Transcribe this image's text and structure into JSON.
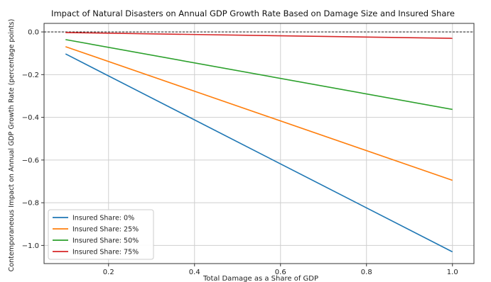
{
  "chart_data": {
    "type": "line",
    "title": "Impact of Natural Disasters on Annual GDP Growth Rate Based on Damage Size and Insured Share",
    "xlabel": "Total Damage as a Share of GDP",
    "ylabel": "Contemporaneous Impact on Annual GDP Growth Rate (percentage points)",
    "xlim": [
      0.05,
      1.05
    ],
    "ylim": [
      -1.085,
      0.04
    ],
    "x_ticks": [
      0.2,
      0.4,
      0.6,
      0.8,
      1.0
    ],
    "x_tick_labels": [
      "0.2",
      "0.4",
      "0.6",
      "0.8",
      "1.0"
    ],
    "y_ticks": [
      0.0,
      -0.2,
      -0.4,
      -0.6,
      -0.8,
      -1.0
    ],
    "y_tick_labels": [
      "0.0",
      "−0.2",
      "−0.4",
      "−0.6",
      "−0.8",
      "−1.0"
    ],
    "grid": true,
    "legend_position": "lower-left",
    "reference_line": {
      "y": 0,
      "style": "dashed",
      "color": "#000000"
    },
    "x": [
      0.1,
      1.0
    ],
    "series": [
      {
        "name": "Insured Share: 0%",
        "color": "#1f77b4",
        "values": [
          -0.103,
          -1.03
        ]
      },
      {
        "name": "Insured Share: 25%",
        "color": "#ff7f0e",
        "values": [
          -0.069,
          -0.695
        ]
      },
      {
        "name": "Insured Share: 50%",
        "color": "#2ca02c",
        "values": [
          -0.036,
          -0.363
        ]
      },
      {
        "name": "Insured Share: 75%",
        "color": "#d62728",
        "values": [
          -0.003,
          -0.03
        ]
      }
    ]
  }
}
